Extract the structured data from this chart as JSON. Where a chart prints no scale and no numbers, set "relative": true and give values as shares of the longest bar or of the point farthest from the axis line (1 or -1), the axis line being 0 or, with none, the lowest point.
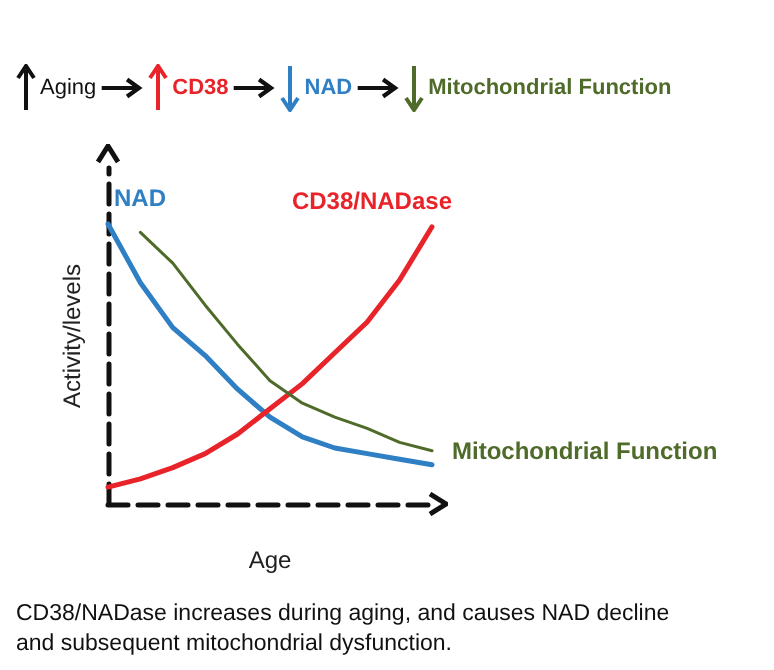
{
  "chart_data": {
    "type": "line",
    "relative": true,
    "xlabel": "Age",
    "ylabel": "Activity/levels",
    "legend": false,
    "grid": false,
    "marker": "none",
    "line_style": "solid",
    "categories": [
      null,
      null,
      null,
      null,
      null,
      null,
      null,
      null,
      null,
      null,
      null
    ],
    "series": [
      {
        "name": "NAD",
        "color": "#2e7fc4",
        "values": [
          1,
          0.79,
          0.63,
          0.53,
          0.41,
          0.31,
          0.24,
          0.2,
          0.18,
          0.16,
          0.14
        ]
      },
      {
        "name": "CD38/NADase",
        "color": "#e8232a",
        "values": [
          0.06,
          0.09,
          0.13,
          0.18,
          0.25,
          0.34,
          0.43,
          0.54,
          0.65,
          0.8,
          0.99
        ]
      },
      {
        "name": "Mitochondrial Function",
        "color": "#4f6b2a",
        "values": [
          null,
          0.97,
          0.86,
          0.71,
          0.57,
          0.44,
          0.36,
          0.31,
          0.27,
          0.22,
          0.19
        ]
      }
    ],
    "annotations": [
      "Aging",
      "CD38",
      "NAD",
      "Mitochondrial Function",
      "CD38/NADase increases during aging, and causes NAD decline and subsequent mitochondrial dysfunction."
    ]
  }
}
